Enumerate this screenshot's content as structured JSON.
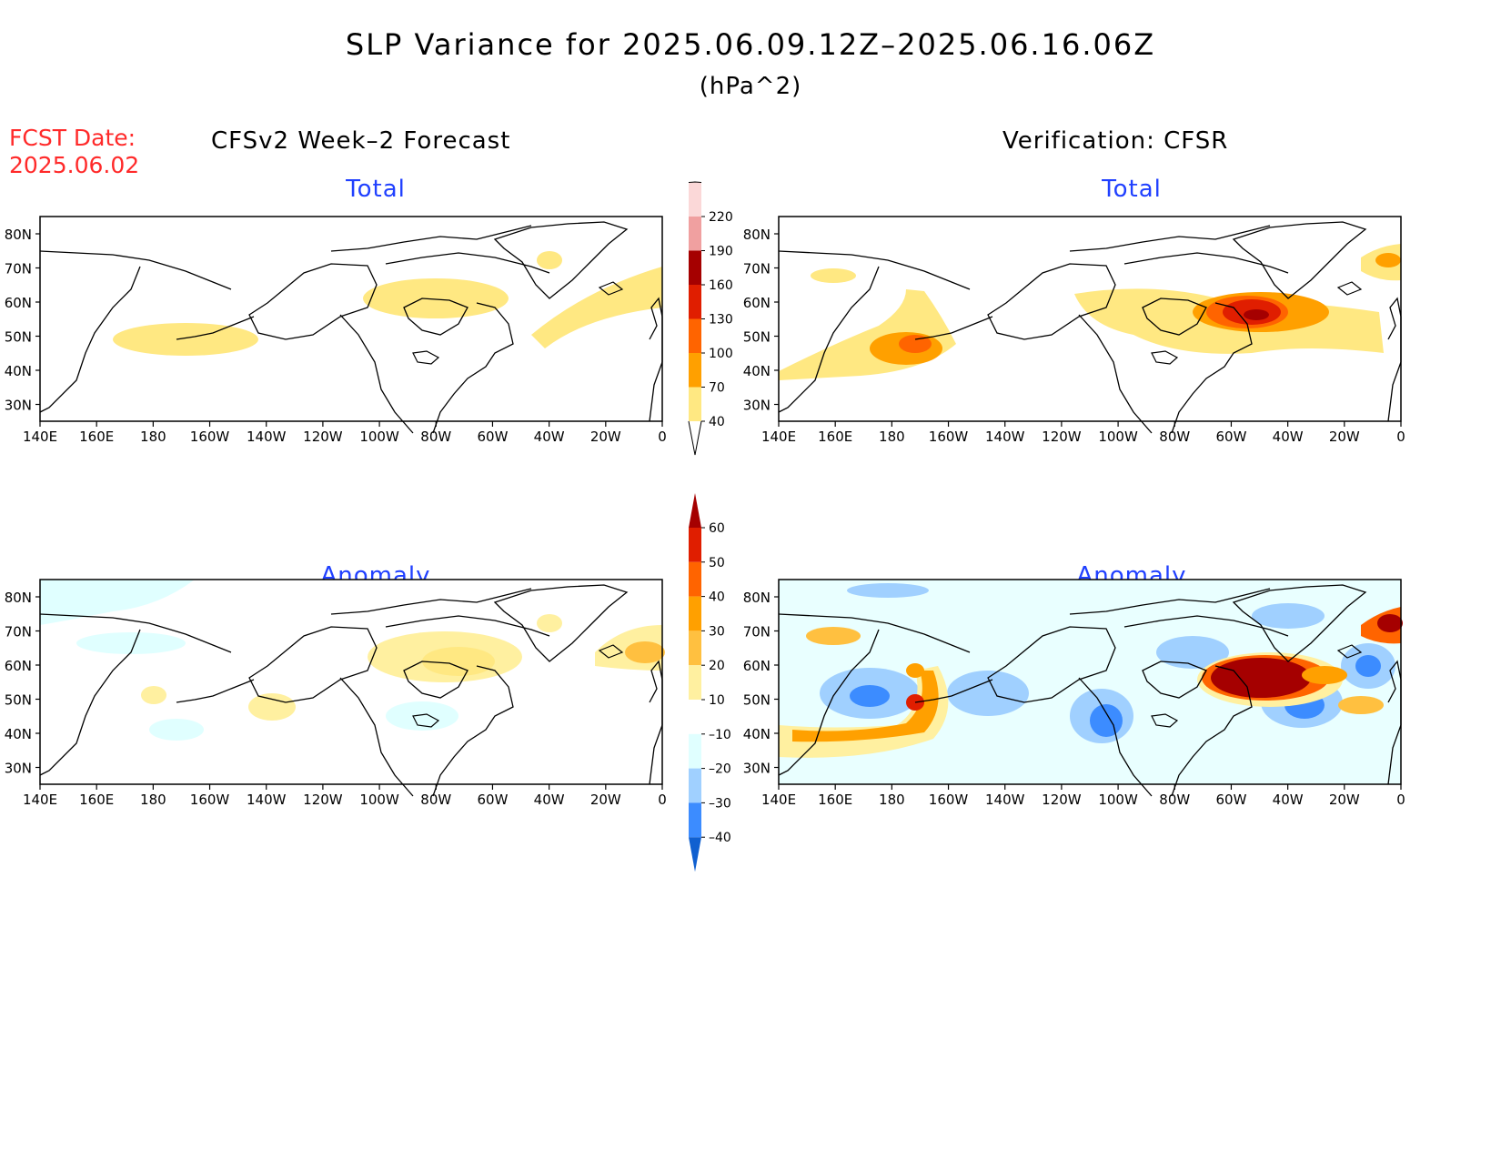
{
  "title": "SLP Variance for 2025.06.09.12Z–2025.06.16.06Z",
  "units": "(hPa^2)",
  "forecast_date_label": "FCST Date:",
  "forecast_date": "2025.06.02",
  "left_heading": "CFSv2 Week–2 Forecast",
  "right_heading": "Verification: CFSR",
  "panels": {
    "top_left": {
      "subtitle": "Total"
    },
    "top_right": {
      "subtitle": "Total"
    },
    "bottom_left": {
      "subtitle": "Anomaly"
    },
    "bottom_right": {
      "subtitle": "Anomaly"
    }
  },
  "axes": {
    "lat_ticks": [
      "80N",
      "70N",
      "60N",
      "50N",
      "40N",
      "30N"
    ],
    "lon_ticks": [
      "140E",
      "160E",
      "180",
      "160W",
      "140W",
      "120W",
      "100W",
      "80W",
      "60W",
      "40W",
      "20W",
      "0"
    ]
  },
  "total_colorbar": {
    "levels": [
      "40",
      "70",
      "100",
      "130",
      "160",
      "190",
      "220"
    ],
    "colors": [
      "#ffe882",
      "#ffa000",
      "#ff6400",
      "#e01e00",
      "#a50000",
      "#f0a0a0",
      "#fbd8d8"
    ]
  },
  "anomaly_colorbar": {
    "levels": [
      "60",
      "50",
      "40",
      "30",
      "20",
      "10",
      "–10",
      "–20",
      "–30",
      "–40"
    ],
    "colors": [
      "#a50000",
      "#e01e00",
      "#ff6400",
      "#ffa000",
      "#ffc040",
      "#fff0a0",
      "#ffffff",
      "#e0ffff",
      "#a0d0ff",
      "#3c8cff",
      "#1060d0"
    ]
  },
  "colors": {
    "forecast_date": "#ff2a2a",
    "subtitle": "#2040ff"
  },
  "chart_data": {
    "type": "heatmap",
    "x_range": [
      "140E",
      "0"
    ],
    "y_range": [
      "25N",
      "85N"
    ],
    "panels": [
      "CFSv2 Week–2 Forecast Total",
      "Verification: CFSR Total",
      "CFSv2 Week–2 Forecast Anomaly",
      "Verification: CFSR Anomaly"
    ]
  }
}
